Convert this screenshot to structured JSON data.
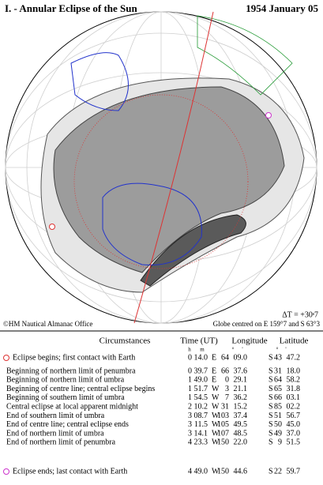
{
  "header": {
    "title": "I. - Annular Eclipse of the Sun",
    "date": "1954 January 05"
  },
  "map": {
    "delta_t": "ΔT = +30ˢ7",
    "credit": "©HM Nautical Almanac Office",
    "centre": "Globe centred on E 159°7 and S 63°3"
  },
  "table": {
    "headers": [
      "Circumstances",
      "Time (UT)",
      "Longitude",
      "Latitude"
    ],
    "units": [
      "h",
      "m",
      "°",
      "'",
      "°",
      "'"
    ],
    "rows": [
      [
        "Eclipse begins; first contact with Earth",
        "0",
        "14.0",
        "E",
        "64",
        "09.0",
        "S",
        "43",
        "47.2"
      ],
      [
        "Beginning of northern limit of penumbra",
        "0",
        "39.7",
        "E",
        "66",
        "37.6",
        "S",
        "31",
        "18.0"
      ],
      [
        "Beginning of northern limit of umbra",
        "1",
        "49.0",
        "E",
        "0",
        "29.1",
        "S",
        "64",
        "58.2"
      ],
      [
        "Beginning of centre line; central eclipse begins",
        "1",
        "51.7",
        "W",
        "3",
        "21.1",
        "S",
        "65",
        "31.8"
      ],
      [
        "Beginning of southern limit of umbra",
        "1",
        "54.5",
        "W",
        "7",
        "36.2",
        "S",
        "66",
        "03.1"
      ],
      [
        "Central eclipse at local apparent midnight",
        "2",
        "10.2",
        "W",
        "31",
        "15.2",
        "S",
        "85",
        "02.2"
      ],
      [
        "End of southern limit of umbra",
        "3",
        "08.7",
        "W",
        "103",
        "37.4",
        "S",
        "51",
        "56.7"
      ],
      [
        "End of centre line; central eclipse ends",
        "3",
        "11.5",
        "W",
        "105",
        "49.5",
        "S",
        "50",
        "45.0"
      ],
      [
        "End of northern limit of umbra",
        "3",
        "14.1",
        "W",
        "107",
        "48.5",
        "S",
        "49",
        "37.0"
      ],
      [
        "End of northern limit of penumbra",
        "4",
        "23.3",
        "W",
        "150",
        "22.0",
        "S",
        "9",
        "51.5"
      ],
      [
        "Eclipse ends; last contact with Earth",
        "4",
        "49.0",
        "W",
        "150",
        "44.6",
        "S",
        "22",
        "59.7"
      ]
    ]
  }
}
